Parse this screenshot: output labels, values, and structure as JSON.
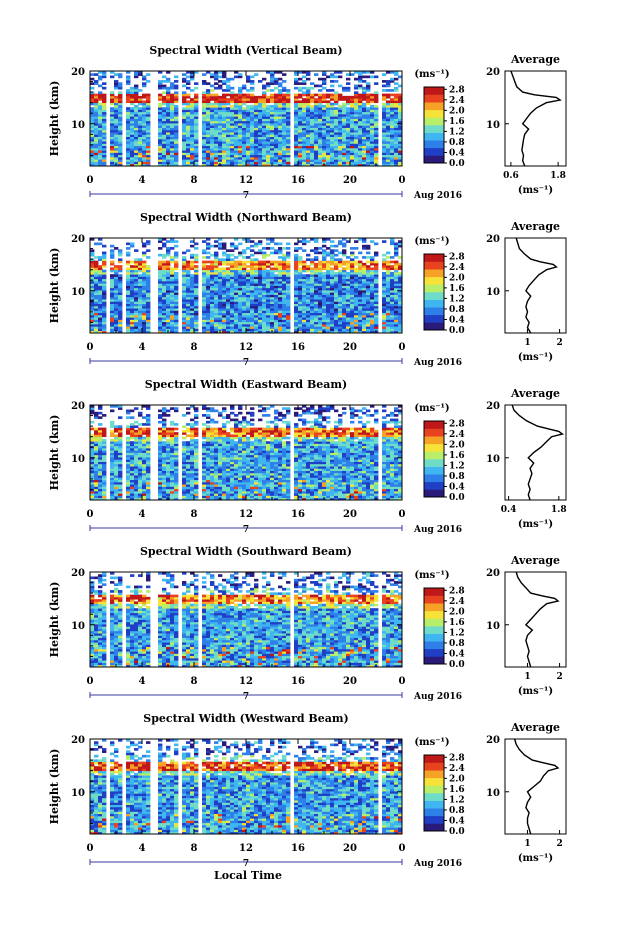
{
  "figure": {
    "date_label": "Aug 2016",
    "day_label": "7",
    "xlabel": "Local Time",
    "x_ticks": [
      "0",
      "4",
      "8",
      "12",
      "16",
      "20",
      "0"
    ],
    "y_ticks": [
      "20",
      "10"
    ],
    "ylabel": "Height (km)",
    "colorbar_unit": "(ms⁻¹)",
    "colorbar_ticks": [
      "2.8",
      "2.4",
      "2.0",
      "1.6",
      "1.2",
      "0.8",
      "0.4",
      "0.0"
    ],
    "avg_title": "Average",
    "avg_xlabel": "(ms⁻¹)",
    "colors": {
      "colormap": [
        "#2a1a7a",
        "#1f3fc4",
        "#2f7fe8",
        "#3fb6f0",
        "#6fdcc8",
        "#b8ee6a",
        "#f7e23a",
        "#f6a226",
        "#e8421e",
        "#c01818"
      ],
      "line": "#000000"
    }
  },
  "chart_data": [
    {
      "type": "heatmap",
      "title": "Spectral Width (Vertical Beam)",
      "xlim": [
        0,
        24
      ],
      "ylim": [
        2,
        20
      ],
      "colorbar_range": [
        0.0,
        2.8
      ],
      "dominant_values": {
        "below_13km": 0.9,
        "tropopause_15km": 2.6,
        "above_16km": 0.5
      },
      "data_gaps_hours": [
        [
          1.2,
          1.5
        ],
        [
          2.4,
          2.7
        ],
        [
          4.7,
          5.2
        ],
        [
          6.7,
          7.2
        ],
        [
          8.2,
          8.6
        ],
        [
          15.3,
          15.6
        ],
        [
          22.3,
          22.6
        ]
      ],
      "profile": {
        "type": "line",
        "title": "Average",
        "xlabel": "(ms⁻¹)",
        "x_ticks": [
          "0.6",
          "1.8"
        ],
        "xlim": [
          0.45,
          2.0
        ],
        "height_km": [
          2,
          3,
          4,
          5,
          6,
          7,
          8,
          9,
          10,
          11,
          12,
          13,
          14,
          14.5,
          15,
          15.5,
          16,
          17,
          18,
          19,
          20
        ],
        "values": [
          0.95,
          0.9,
          0.92,
          0.88,
          0.9,
          0.92,
          0.95,
          1.05,
          0.9,
          1.0,
          1.1,
          1.25,
          1.5,
          1.85,
          1.75,
          1.2,
          0.9,
          0.75,
          0.7,
          0.65,
          0.6
        ]
      }
    },
    {
      "type": "heatmap",
      "title": "Spectral Width (Northward Beam)",
      "xlim": [
        0,
        24
      ],
      "ylim": [
        2,
        20
      ],
      "colorbar_range": [
        0.0,
        2.8
      ],
      "dominant_values": {
        "below_13km": 0.8,
        "tropopause_15km": 2.2,
        "above_16km": 0.6
      },
      "data_gaps_hours": [
        [
          1.2,
          1.5
        ],
        [
          2.4,
          2.7
        ],
        [
          4.7,
          5.2
        ],
        [
          6.7,
          7.2
        ],
        [
          8.2,
          8.6
        ],
        [
          15.3,
          15.6
        ],
        [
          22.3,
          22.6
        ]
      ],
      "profile": {
        "type": "line",
        "title": "Average",
        "xlabel": "(ms⁻¹)",
        "x_ticks": [
          "1",
          "2"
        ],
        "xlim": [
          0.3,
          2.2
        ],
        "height_km": [
          2,
          3,
          4,
          5,
          6,
          7,
          8,
          9,
          10,
          11,
          12,
          13,
          14,
          14.5,
          15,
          15.5,
          16,
          17,
          18,
          19,
          20
        ],
        "values": [
          1.1,
          1.0,
          1.05,
          0.95,
          1.0,
          0.95,
          1.0,
          1.1,
          0.95,
          1.05,
          1.2,
          1.35,
          1.6,
          1.9,
          1.8,
          1.4,
          1.1,
          0.9,
          0.75,
          0.7,
          0.65
        ]
      }
    },
    {
      "type": "heatmap",
      "title": "Spectral Width (Eastward Beam)",
      "xlim": [
        0,
        24
      ],
      "ylim": [
        2,
        20
      ],
      "colorbar_range": [
        0.0,
        2.8
      ],
      "dominant_values": {
        "below_13km": 0.9,
        "tropopause_15km": 2.3,
        "above_16km": 0.5
      },
      "data_gaps_hours": [
        [
          1.2,
          1.5
        ],
        [
          2.4,
          2.7
        ],
        [
          4.7,
          5.2
        ],
        [
          6.7,
          7.2
        ],
        [
          8.2,
          8.6
        ],
        [
          15.3,
          15.6
        ],
        [
          22.3,
          22.6
        ]
      ],
      "profile": {
        "type": "line",
        "title": "Average",
        "xlabel": "(ms⁻¹)",
        "x_ticks": [
          "0.4",
          "1.8"
        ],
        "xlim": [
          0.3,
          2.0
        ],
        "height_km": [
          2,
          3,
          4,
          5,
          6,
          7,
          8,
          9,
          10,
          11,
          12,
          13,
          14,
          14.5,
          15,
          15.5,
          16,
          17,
          18,
          19,
          20
        ],
        "values": [
          1.0,
          0.95,
          1.0,
          0.95,
          1.0,
          1.05,
          1.0,
          1.1,
          0.95,
          1.1,
          1.3,
          1.45,
          1.6,
          1.9,
          1.8,
          1.5,
          1.2,
          0.9,
          0.7,
          0.55,
          0.5
        ]
      }
    },
    {
      "type": "heatmap",
      "title": "Spectral Width (Southward Beam)",
      "xlim": [
        0,
        24
      ],
      "ylim": [
        2,
        20
      ],
      "colorbar_range": [
        0.0,
        2.8
      ],
      "dominant_values": {
        "below_13km": 0.9,
        "tropopause_15km": 2.2,
        "above_16km": 0.6
      },
      "data_gaps_hours": [
        [
          1.2,
          1.5
        ],
        [
          2.4,
          2.7
        ],
        [
          4.7,
          5.2
        ],
        [
          6.7,
          7.2
        ],
        [
          8.2,
          8.6
        ],
        [
          15.3,
          15.6
        ],
        [
          22.3,
          22.6
        ]
      ],
      "profile": {
        "type": "line",
        "title": "Average",
        "xlabel": "(ms⁻¹)",
        "x_ticks": [
          "1",
          "2"
        ],
        "xlim": [
          0.3,
          2.2
        ],
        "height_km": [
          2,
          3,
          4,
          5,
          6,
          7,
          8,
          9,
          10,
          11,
          12,
          13,
          14,
          14.5,
          15,
          15.5,
          16,
          17,
          18,
          19,
          20
        ],
        "values": [
          1.1,
          1.05,
          1.0,
          1.05,
          1.0,
          0.95,
          1.0,
          1.15,
          0.95,
          1.1,
          1.25,
          1.4,
          1.6,
          1.95,
          1.85,
          1.45,
          1.1,
          0.95,
          0.8,
          0.7,
          0.65
        ]
      }
    },
    {
      "type": "heatmap",
      "title": "Spectral Width (Westward Beam)",
      "xlim": [
        0,
        24
      ],
      "ylim": [
        2,
        20
      ],
      "colorbar_range": [
        0.0,
        2.8
      ],
      "dominant_values": {
        "below_13km": 0.9,
        "tropopause_15km": 2.4,
        "above_16km": 0.6
      },
      "data_gaps_hours": [
        [
          1.2,
          1.5
        ],
        [
          2.4,
          2.7
        ],
        [
          4.7,
          5.2
        ],
        [
          6.7,
          7.2
        ],
        [
          8.2,
          8.6
        ],
        [
          15.3,
          15.6
        ],
        [
          22.3,
          22.6
        ]
      ],
      "profile": {
        "type": "line",
        "title": "Average",
        "xlabel": "(ms⁻¹)",
        "x_ticks": [
          "1",
          "2"
        ],
        "xlim": [
          0.3,
          2.2
        ],
        "height_km": [
          2,
          3,
          4,
          5,
          6,
          7,
          8,
          9,
          10,
          11,
          12,
          13,
          14,
          14.5,
          15,
          15.5,
          16,
          17,
          18,
          19,
          20
        ],
        "values": [
          1.1,
          1.05,
          1.0,
          1.0,
          1.05,
          0.95,
          1.0,
          1.1,
          1.0,
          1.2,
          1.4,
          1.5,
          1.65,
          1.95,
          1.85,
          1.5,
          1.15,
          0.9,
          0.75,
          0.65,
          0.6
        ]
      }
    }
  ]
}
